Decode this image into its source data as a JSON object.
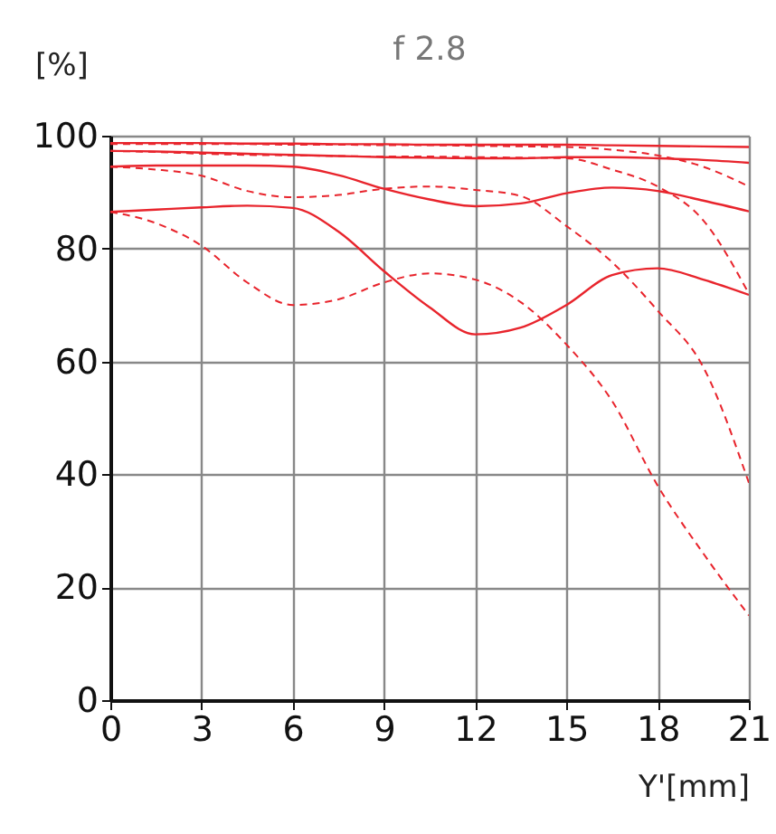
{
  "chart_data": {
    "type": "line",
    "title": "f 2.8",
    "xlabel": "Y'[mm]",
    "ylabel": "[%]",
    "x": [
      0,
      1.5,
      3,
      4.5,
      6,
      7.5,
      9,
      10.5,
      12,
      13.5,
      15,
      16.5,
      18,
      19.5,
      21
    ],
    "xlim": [
      0,
      21
    ],
    "xticks": [
      0,
      3,
      6,
      9,
      12,
      15,
      18,
      21
    ],
    "ylim": [
      0,
      100
    ],
    "yticks": [
      0,
      20,
      40,
      60,
      80,
      100
    ],
    "grid": true,
    "series": [
      {
        "color": "#e8242c",
        "line_style": "solid",
        "values": [
          98.7,
          98.7,
          98.7,
          98.6,
          98.6,
          98.5,
          98.5,
          98.4,
          98.4,
          98.4,
          98.4,
          98.3,
          98.2,
          98.1,
          98
        ]
      },
      {
        "color": "#e8242c",
        "line_style": "dashed",
        "values": [
          98.5,
          98.5,
          98.5,
          98.5,
          98.4,
          98.4,
          98.3,
          98.3,
          98.2,
          98.1,
          98,
          97.5,
          96.5,
          94.5,
          91
        ]
      },
      {
        "color": "#e8242c",
        "line_style": "solid",
        "values": [
          97.3,
          97.2,
          97,
          96.8,
          96.6,
          96.4,
          96.2,
          96.1,
          96,
          96,
          96.2,
          96.2,
          96,
          95.7,
          95.2
        ]
      },
      {
        "color": "#e8242c",
        "line_style": "dashed",
        "values": [
          97.3,
          97.1,
          96.8,
          96.6,
          96.5,
          96.4,
          96.3,
          96.3,
          96.2,
          96.1,
          96,
          94,
          91,
          85,
          72
        ]
      },
      {
        "color": "#e8242c",
        "line_style": "solid",
        "values": [
          94.5,
          94.7,
          94.7,
          94.7,
          94.5,
          93,
          90.6,
          88.7,
          87.5,
          88,
          89.8,
          90.8,
          90.2,
          88.5,
          86.6
        ]
      },
      {
        "color": "#e8242c",
        "line_style": "dashed",
        "values": [
          94.5,
          94,
          92.9,
          90.2,
          89.1,
          89.5,
          90.6,
          91,
          90.4,
          89.3,
          84,
          77.6,
          69,
          59,
          38.5
        ]
      },
      {
        "color": "#e8242c",
        "line_style": "solid",
        "values": [
          86.5,
          86.9,
          87.3,
          87.6,
          87.2,
          83,
          76,
          69.6,
          64.8,
          66,
          70,
          75.3,
          76.5,
          74.5,
          71.8
        ]
      },
      {
        "color": "#e8242c",
        "line_style": "dashed",
        "values": [
          86.5,
          84.5,
          80.5,
          74,
          70,
          71,
          74,
          75.6,
          74.5,
          70.5,
          63,
          53,
          38,
          26,
          15
        ]
      }
    ]
  }
}
